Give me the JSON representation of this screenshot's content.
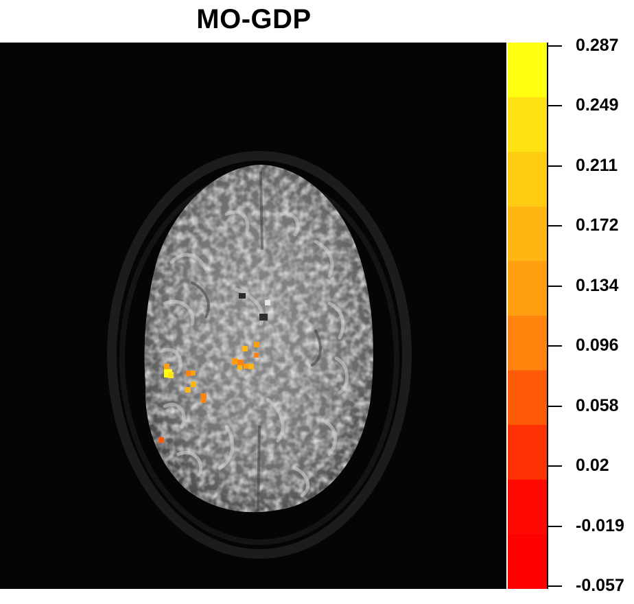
{
  "title": "MO-GDP",
  "colorbar": {
    "labels": [
      "0.287",
      "0.249",
      "0.211",
      "0.172",
      "0.134",
      "0.096",
      "0.058",
      "0.02",
      "-0.019",
      "-0.057"
    ],
    "max": 0.287,
    "min": -0.057,
    "colors_top_to_bottom": [
      "#ffff10",
      "#ffe312",
      "#ffcc14",
      "#ffb613",
      "#ff9f10",
      "#ff830d",
      "#ff5a08",
      "#ff3205",
      "#ff0802",
      "#ff0000"
    ]
  },
  "image": {
    "description_colormap": "grayscale-anatomy-with-heat-overlay"
  }
}
